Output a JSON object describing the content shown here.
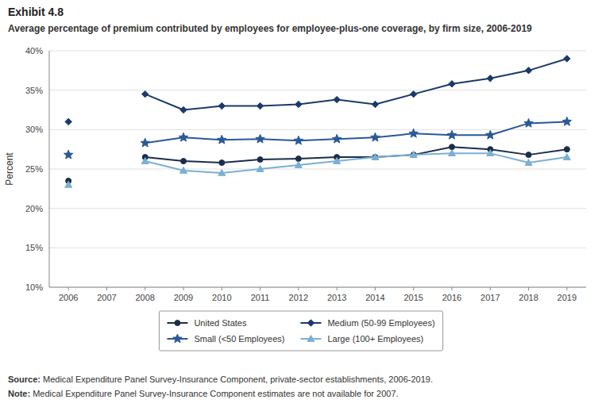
{
  "chart_data": {
    "type": "line",
    "title": "Exhibit 4.8",
    "subtitle": "Average percentage of premium contributed by employees for employee-plus-one coverage, by firm size, 2006-2019",
    "ylabel": "Percent",
    "x": [
      2006,
      2007,
      2008,
      2009,
      2010,
      2011,
      2012,
      2013,
      2014,
      2015,
      2016,
      2017,
      2018,
      2019
    ],
    "series": [
      {
        "name": "United States",
        "color": "#1a2e4a",
        "marker": "circle",
        "values": [
          23.5,
          null,
          26.5,
          26.0,
          25.8,
          26.2,
          26.3,
          26.5,
          26.5,
          26.8,
          27.8,
          27.5,
          26.8,
          27.5
        ]
      },
      {
        "name": "Small (<50 Employees)",
        "color": "#2a5898",
        "marker": "star",
        "values": [
          26.8,
          null,
          28.3,
          29.0,
          28.7,
          28.8,
          28.6,
          28.8,
          29.0,
          29.5,
          29.3,
          29.3,
          30.8,
          31.0
        ]
      },
      {
        "name": "Medium (50-99 Employees)",
        "color": "#1a3a6b",
        "marker": "diamond",
        "values": [
          31.0,
          null,
          34.5,
          32.5,
          33.0,
          33.0,
          33.2,
          33.8,
          33.2,
          34.5,
          35.8,
          36.5,
          37.5,
          39.0
        ]
      },
      {
        "name": "Large (100+ Employees)",
        "color": "#7bafd4",
        "marker": "triangle",
        "values": [
          23.0,
          null,
          26.0,
          24.8,
          24.5,
          25.0,
          25.5,
          26.0,
          26.5,
          26.8,
          27.0,
          27.0,
          25.8,
          26.5
        ]
      }
    ],
    "xlim": [
      2005.5,
      2019.5
    ],
    "xticks": [
      2006,
      2007,
      2008,
      2009,
      2010,
      2011,
      2012,
      2013,
      2014,
      2015,
      2016,
      2017,
      2018,
      2019
    ],
    "ylim": [
      10,
      40
    ],
    "yticks": [
      {
        "value": 10,
        "label": "10%"
      },
      {
        "value": 15,
        "label": "15%"
      },
      {
        "value": 20,
        "label": "20%"
      },
      {
        "value": 25,
        "label": "25%"
      },
      {
        "value": 30,
        "label": "30%"
      },
      {
        "value": 35,
        "label": "35%"
      },
      {
        "value": 40,
        "label": "40%"
      }
    ],
    "grid": true,
    "legend": "bottom",
    "annotations": [
      "Source: Medical Expenditure Panel Survey-Insurance Component, private-sector establishments, 2006-2019.",
      "Note: Medical Expenditure Panel Survey-Insurance Component estimates are not available for 2007."
    ]
  }
}
